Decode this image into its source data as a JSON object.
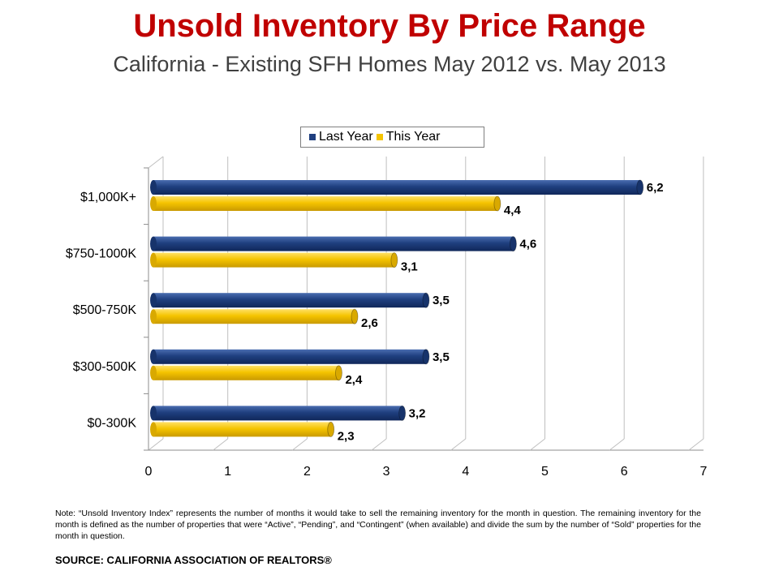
{
  "header": {
    "title": "Unsold Inventory By Price Range",
    "subtitle": "California - Existing SFH Homes May 2012 vs. May 2013"
  },
  "footer": {
    "note": "Note: “Unsold Inventory Index” represents the number of months it would take to sell the remaining inventory for the month in question. The remaining inventory for the month is defined as the number of properties that were “Active”, “Pending”, and “Contingent” (when available) and divide the sum by the number of “Sold” properties for the month in question.",
    "source": "SOURCE: CALIFORNIA ASSOCIATION OF REALTORS®"
  },
  "colors": {
    "last_year": "#1f3f7f",
    "this_year": "#f5c400",
    "title": "#c00000",
    "grid": "#bfbfbf"
  },
  "chart_data": {
    "type": "bar",
    "orientation": "horizontal",
    "title": "Unsold Inventory By Price Range",
    "subtitle": "California - Existing SFH Homes May 2012 vs. May 2013",
    "categories": [
      "$1,000K+",
      "$750-1000K",
      "$500-750K",
      "$300-500K",
      "$0-300K"
    ],
    "series": [
      {
        "name": "Last Year",
        "values": [
          6.2,
          4.6,
          3.5,
          3.5,
          3.2
        ],
        "labels": [
          "6,2",
          "4,6",
          "3,5",
          "3,5",
          "3,2"
        ]
      },
      {
        "name": "This Year",
        "values": [
          4.4,
          3.1,
          2.6,
          2.4,
          2.3
        ],
        "labels": [
          "4,4",
          "3,1",
          "2,6",
          "2,4",
          "2,3"
        ]
      }
    ],
    "x_ticks": [
      "0",
      "1",
      "2",
      "3",
      "4",
      "5",
      "6",
      "7"
    ],
    "xlim": [
      0,
      7
    ],
    "grid": true,
    "legend_position": "top"
  }
}
